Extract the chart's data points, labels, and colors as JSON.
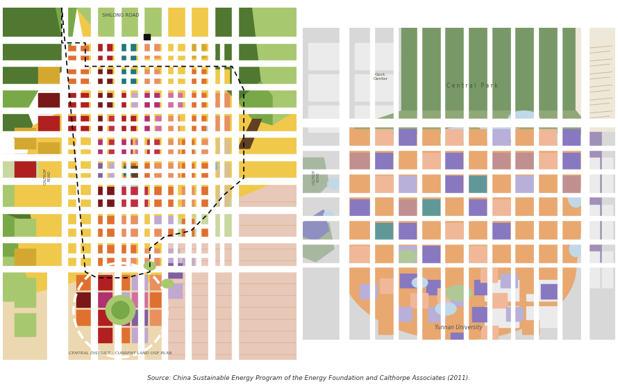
{
  "fig_width": 8.9,
  "fig_height": 5.6,
  "dpi": 100,
  "left_label": "CENTRAL DISTRICT : CURRENT LAND USE PLAN",
  "right_label": "Yunnan University",
  "caption": "Source: China Sustainable Energy Program of the Energy Foundation and Calthorpe Associates (2011).",
  "lc": {
    "yellow": "#F0C84A",
    "light_yellow": "#F5DC80",
    "dark_yellow": "#D4A830",
    "orange": "#E07030",
    "light_orange": "#E89060",
    "red": "#B02020",
    "dark_red": "#781818",
    "crimson": "#C03040",
    "green": "#507830",
    "med_green": "#78A848",
    "light_green": "#A8C870",
    "pale_green": "#C8D8A0",
    "teal": "#207878",
    "light_teal": "#60A898",
    "purple": "#8060A0",
    "light_purple": "#C0A8D0",
    "pink": "#D070A0",
    "magenta": "#B03070",
    "blue": "#4878A8",
    "light_blue": "#80B8D8",
    "pale_blue": "#B8D8E8",
    "brown": "#604020",
    "beige": "#D8C090",
    "pale_beige": "#ECD8B0",
    "pink_beige": "#E8C8B8",
    "white": "#FFFFFF",
    "gray": "#C0C0C0"
  },
  "rc": {
    "orange": "#E8A870",
    "light_orange": "#F0C090",
    "peach": "#F0B898",
    "purple": "#8878C0",
    "light_purple": "#B8B0D8",
    "blue_purple": "#6860A8",
    "teal": "#609898",
    "light_teal": "#90C0B8",
    "rose": "#C09090",
    "blue_gray": "#A0B8C8",
    "light_blue": "#C0D8E8",
    "pale_blue": "#D8EAF0",
    "green": "#789868",
    "med_green": "#90A878",
    "light_green": "#B0C898",
    "pale_green": "#C8D8B0",
    "gray_green": "#A8B8A0",
    "gray": "#C8C8C8",
    "light_gray": "#D8D8D8",
    "white": "#F5F5F5",
    "off_white": "#EBEBEB",
    "cream": "#EEE8D8",
    "beige": "#D8C8A8",
    "tan": "#C8B890",
    "purple_road": "#A090B8"
  }
}
